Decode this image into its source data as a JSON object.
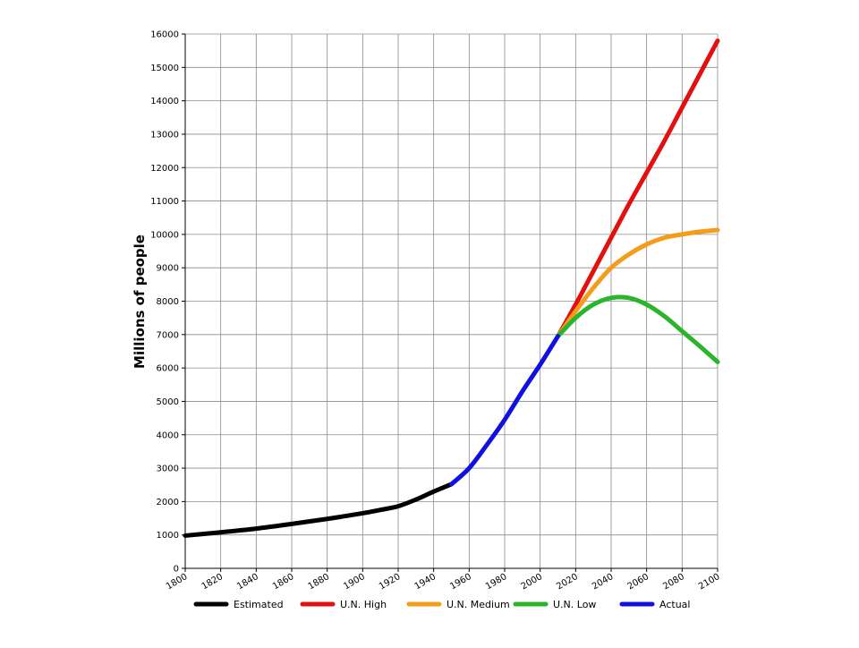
{
  "chart_data": {
    "type": "line",
    "title": "",
    "xlabel": "",
    "ylabel": "Millions of people",
    "xlim": [
      1800,
      2100
    ],
    "ylim": [
      0,
      16000
    ],
    "x_ticks": [
      1800,
      1820,
      1840,
      1860,
      1880,
      1900,
      1920,
      1940,
      1960,
      1980,
      2000,
      2020,
      2040,
      2060,
      2080,
      2100
    ],
    "y_ticks": [
      0,
      1000,
      2000,
      3000,
      4000,
      5000,
      6000,
      7000,
      8000,
      9000,
      10000,
      11000,
      12000,
      13000,
      14000,
      15000,
      16000
    ],
    "grid": true,
    "legend_position": "bottom",
    "series": [
      {
        "name": "Estimated",
        "color": "#000000",
        "points": [
          [
            1800,
            980
          ],
          [
            1820,
            1080
          ],
          [
            1840,
            1190
          ],
          [
            1860,
            1330
          ],
          [
            1880,
            1480
          ],
          [
            1900,
            1650
          ],
          [
            1910,
            1750
          ],
          [
            1920,
            1860
          ],
          [
            1930,
            2060
          ],
          [
            1940,
            2300
          ],
          [
            1950,
            2520
          ]
        ]
      },
      {
        "name": "U.N. High",
        "color": "#e31010",
        "points": [
          [
            2010,
            6950
          ],
          [
            2020,
            7900
          ],
          [
            2030,
            8900
          ],
          [
            2040,
            9900
          ],
          [
            2050,
            10900
          ],
          [
            2060,
            11850
          ],
          [
            2070,
            12800
          ],
          [
            2080,
            13800
          ],
          [
            2090,
            14800
          ],
          [
            2100,
            15800
          ]
        ]
      },
      {
        "name": "U.N. Medium",
        "color": "#f59c1a",
        "points": [
          [
            2010,
            6950
          ],
          [
            2020,
            7700
          ],
          [
            2030,
            8400
          ],
          [
            2040,
            9000
          ],
          [
            2050,
            9400
          ],
          [
            2060,
            9700
          ],
          [
            2070,
            9900
          ],
          [
            2080,
            10000
          ],
          [
            2090,
            10080
          ],
          [
            2100,
            10130
          ]
        ]
      },
      {
        "name": "U.N. Low",
        "color": "#2bb52b",
        "points": [
          [
            2010,
            6950
          ],
          [
            2020,
            7500
          ],
          [
            2030,
            7900
          ],
          [
            2040,
            8100
          ],
          [
            2050,
            8100
          ],
          [
            2060,
            7900
          ],
          [
            2070,
            7550
          ],
          [
            2080,
            7100
          ],
          [
            2090,
            6650
          ],
          [
            2100,
            6180
          ]
        ]
      },
      {
        "name": "Actual",
        "color": "#1010e0",
        "points": [
          [
            1950,
            2520
          ],
          [
            1960,
            3000
          ],
          [
            1970,
            3700
          ],
          [
            1980,
            4450
          ],
          [
            1990,
            5300
          ],
          [
            2000,
            6100
          ],
          [
            2010,
            6950
          ]
        ]
      }
    ]
  }
}
